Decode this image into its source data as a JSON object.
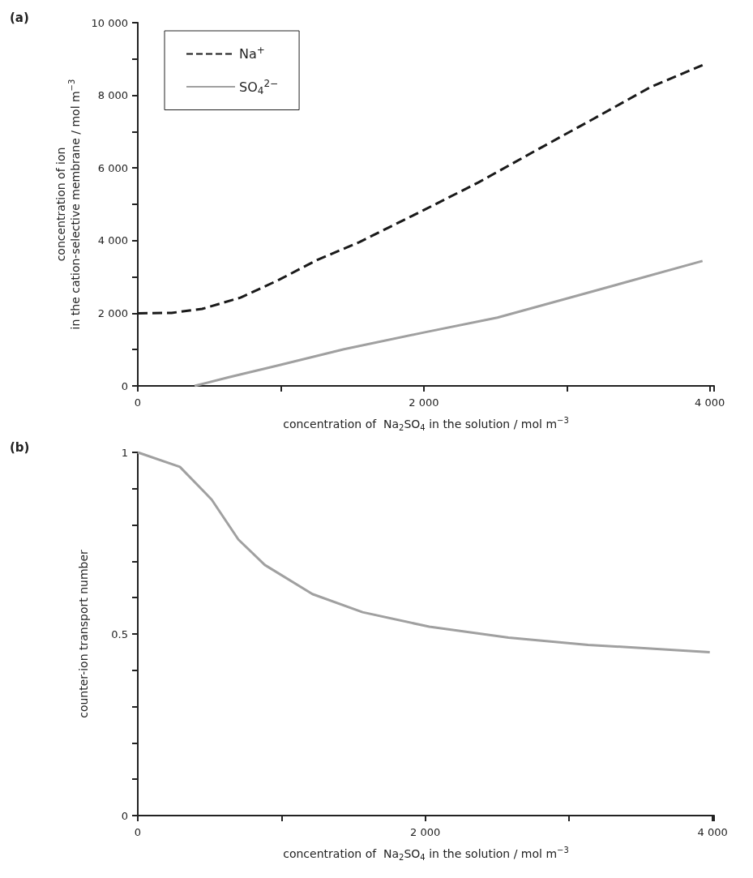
{
  "chart_data": [
    {
      "type": "line",
      "annotations": [
        "(a)"
      ],
      "xlabel": "concentration of  Na$_{2}$SO$_{4}$ in the solution / mol m$^{−3}$",
      "ylabel": "concentration of ion\nin the cation-selective membrane / mol m$^{−3}$",
      "xlim": [
        0,
        4030
      ],
      "xticks": [
        0,
        {
          "value": 1000,
          "label": null
        },
        {
          "value": 2000,
          "label": "2 000"
        },
        {
          "value": 3000,
          "label": null
        },
        {
          "value": 4000,
          "label": "4 000"
        }
      ],
      "ylim": [
        0,
        10000
      ],
      "yticks": [
        0,
        {
          "value": 1000,
          "label": null
        },
        {
          "value": 2000,
          "label": "2 000"
        },
        {
          "value": 3000,
          "label": null
        },
        {
          "value": 4000,
          "label": "4 000"
        },
        {
          "value": 5000,
          "label": null
        },
        {
          "value": 6000,
          "label": "6 000"
        },
        {
          "value": 7000,
          "label": null
        },
        {
          "value": 8000,
          "label": "8 000"
        },
        {
          "value": 9000,
          "label": null
        },
        {
          "value": 10000,
          "label": "10 000"
        }
      ],
      "grid": false,
      "legend": "top left",
      "marker": "none",
      "series": [
        {
          "name": "Na$^{+}$",
          "color": "#1a1a1a",
          "line_style": "dashed",
          "x": [
            0,
            236,
            450,
            718,
            987,
            1255,
            1550,
            2000,
            2381,
            2783,
            3185,
            3587,
            3949
          ],
          "values": [
            2000,
            2010,
            2120,
            2430,
            2920,
            3470,
            3960,
            4840,
            5600,
            6480,
            7350,
            8230,
            8830
          ]
        },
        {
          "name": "SO$_{4}$$^{2−}$",
          "color": "#a0a0a0",
          "line_style": "solid",
          "x": [
            397,
            638,
            987,
            1442,
            2000,
            2515,
            3051,
            3949
          ],
          "values": [
            0,
            240,
            570,
            1010,
            1470,
            1880,
            2460,
            3440
          ]
        }
      ]
    },
    {
      "type": "line",
      "annotations": [
        "(b)"
      ],
      "xlabel": "concentration of  Na$_{2}$SO$_{4}$ in the solution / mol m$^{−3}$",
      "ylabel": "counter-ion transport number",
      "xlim": [
        0,
        4010
      ],
      "xticks": [
        0,
        {
          "value": 1000,
          "label": null
        },
        {
          "value": 2000,
          "label": "2 000"
        },
        {
          "value": 3000,
          "label": null
        },
        {
          "value": 4000,
          "label": "4 000"
        }
      ],
      "ylim": [
        0,
        1
      ],
      "yticks": [
        0,
        {
          "value": 0.1,
          "label": null
        },
        {
          "value": 0.2,
          "label": null
        },
        {
          "value": 0.3,
          "label": null
        },
        {
          "value": 0.4,
          "label": null
        },
        0.5,
        {
          "value": 0.6,
          "label": null
        },
        {
          "value": 0.7,
          "label": null
        },
        {
          "value": 0.8,
          "label": null
        },
        {
          "value": 0.9,
          "label": null
        },
        1
      ],
      "grid": false,
      "marker": "none",
      "series": [
        {
          "color": "#a0a0a0",
          "line_style": "solid",
          "x": [
            0,
            293,
            514,
            700,
            884,
            1215,
            1564,
            2028,
            2580,
            3133,
            3980
          ],
          "values": [
            1.0,
            0.96,
            0.87,
            0.76,
            0.69,
            0.61,
            0.56,
            0.52,
            0.49,
            0.47,
            0.45
          ]
        }
      ]
    }
  ]
}
